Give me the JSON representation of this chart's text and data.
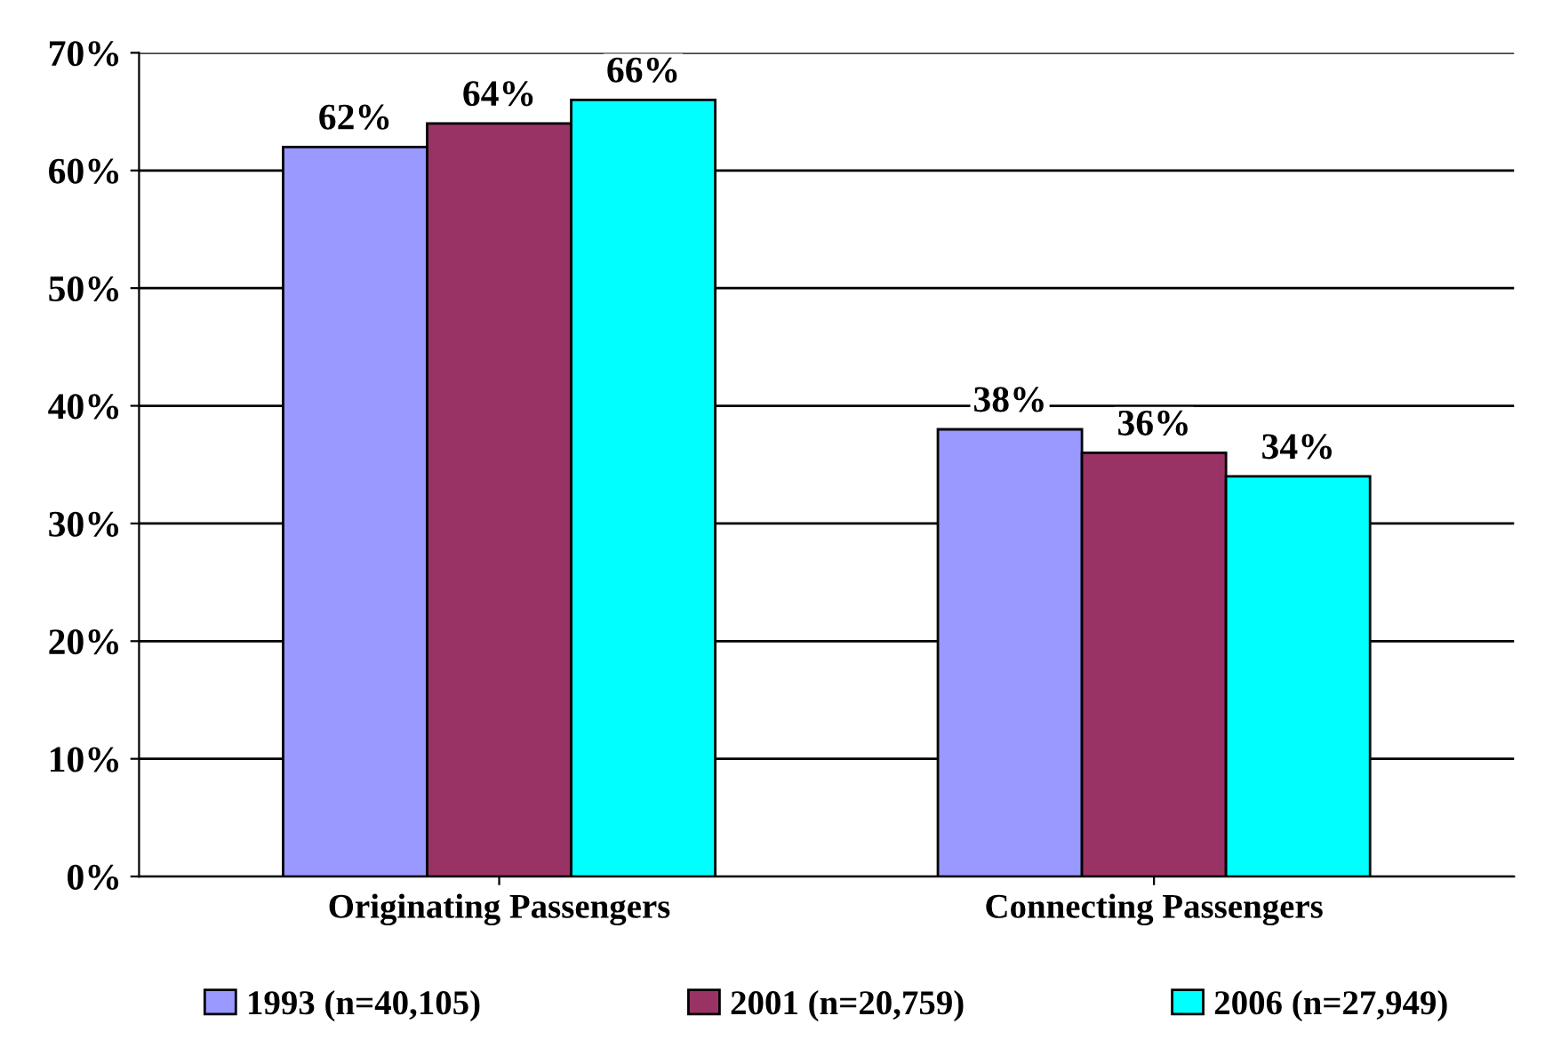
{
  "chart_data": {
    "type": "bar",
    "categories": [
      "Originating Passengers",
      "Connecting Passengers"
    ],
    "series": [
      {
        "name": "1993 (n=40,105)",
        "color": "#9999ff",
        "values": [
          62,
          38
        ],
        "value_labels": [
          "62%",
          "38%"
        ]
      },
      {
        "name": "2001 (n=20,759)",
        "color": "#993366",
        "values": [
          64,
          36
        ],
        "value_labels": [
          "64%",
          "36%"
        ]
      },
      {
        "name": "2006 (n=27,949)",
        "color": "#00ffff",
        "values": [
          66,
          34
        ],
        "value_labels": [
          "66%",
          "34%"
        ]
      }
    ],
    "ylim": [
      0,
      70
    ],
    "yticks": [
      {
        "value": 0,
        "label": "0%"
      },
      {
        "value": 10,
        "label": "10%"
      },
      {
        "value": 20,
        "label": "20%"
      },
      {
        "value": 30,
        "label": "30%"
      },
      {
        "value": 40,
        "label": "40%"
      },
      {
        "value": 50,
        "label": "50%"
      },
      {
        "value": 60,
        "label": "60%"
      },
      {
        "value": 70,
        "label": "70%"
      }
    ],
    "grid": "y",
    "legend": "bottom"
  }
}
